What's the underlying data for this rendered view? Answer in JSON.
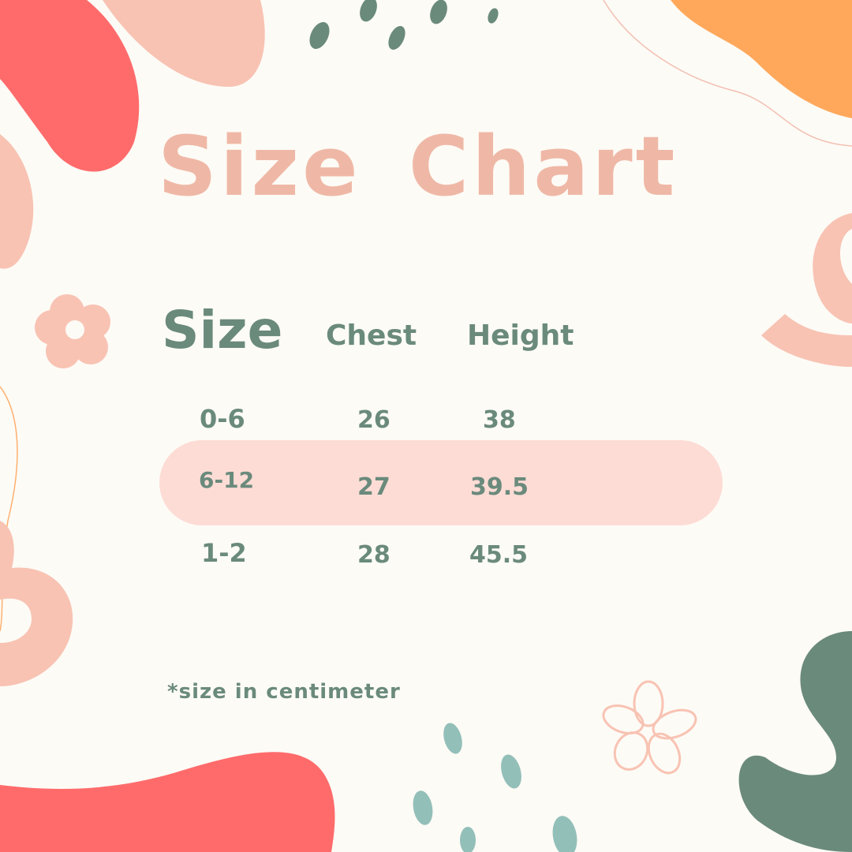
{
  "title": "Size Chart",
  "headers": {
    "size": "Size",
    "chest": "Chest",
    "height": "Height"
  },
  "rows": [
    {
      "size": "0-6",
      "chest": "26",
      "height": "38"
    },
    {
      "size": "6-12",
      "chest": "27",
      "height": "39.5"
    },
    {
      "size": "1-2",
      "chest": "28",
      "height": "45.5"
    }
  ],
  "note": "*size in centimeter",
  "colors": {
    "background": "#fdfbf6",
    "title": "#efb8a6",
    "text": "#6a8a7c",
    "highlight": "#fddcd5",
    "coral": "#ff6b6b",
    "peach": "#f8c3b3",
    "orange": "#ffa85c",
    "teal": "#93bfb9"
  }
}
